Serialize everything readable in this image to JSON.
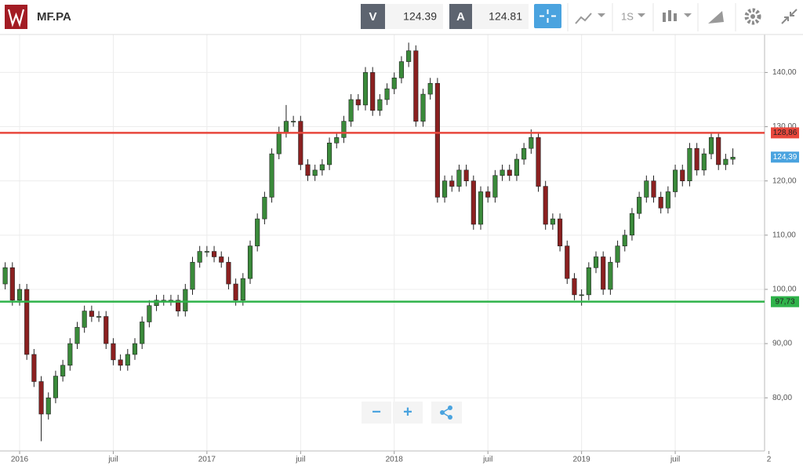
{
  "toolbar": {
    "symbol": "MF.PA",
    "bid_label": "V",
    "bid": "124.39",
    "ask_label": "A",
    "ask": "124.81",
    "period": "1S"
  },
  "zoom_controls": {
    "minus": "−",
    "plus": "+"
  },
  "chart_data": {
    "type": "candlestick",
    "up_color": "#3a8a3a",
    "down_color": "#8b2020",
    "grid": true,
    "open": [
      101,
      104,
      98,
      100,
      88,
      83,
      77,
      80,
      84,
      86,
      90,
      93,
      96,
      95,
      95,
      90,
      87,
      86,
      88,
      90,
      94,
      97,
      98,
      98,
      98,
      96,
      100,
      105,
      107,
      107,
      106,
      105,
      101,
      98,
      102,
      108,
      113,
      117,
      125,
      129,
      131,
      131,
      123,
      121,
      122,
      123,
      127,
      128,
      131,
      135,
      134,
      140,
      133,
      135,
      137,
      139,
      142,
      144,
      131,
      136,
      138,
      117,
      120,
      119,
      122,
      120,
      112,
      118,
      117,
      121,
      122,
      121,
      124,
      126,
      128,
      119,
      112,
      113,
      108,
      102,
      99,
      99,
      104,
      106,
      100,
      105,
      108,
      110,
      114,
      117,
      120,
      117,
      115,
      118,
      122,
      120,
      126,
      122,
      125,
      128,
      123,
      124
    ],
    "high": [
      105,
      105,
      101,
      101,
      89,
      84,
      81,
      85,
      87,
      91,
      94,
      97,
      97,
      96,
      96,
      91,
      88,
      89,
      91,
      95,
      98,
      99,
      99,
      99,
      99,
      101,
      106,
      108,
      108,
      108,
      107,
      106,
      102,
      103,
      109,
      114,
      118,
      126,
      130,
      134,
      132,
      132,
      124,
      123,
      124,
      128,
      129,
      132,
      136,
      136,
      141,
      141,
      136,
      138,
      140,
      143,
      145.5,
      145,
      137,
      139,
      139,
      121,
      121,
      123,
      123,
      121,
      119,
      119,
      122,
      123,
      123,
      125,
      127,
      129.5,
      129,
      120,
      114,
      114,
      109,
      103,
      100,
      105,
      107,
      107,
      106,
      109,
      111,
      115,
      118,
      121,
      121,
      118,
      119,
      123,
      123,
      127,
      127,
      126,
      129,
      129,
      125,
      126
    ],
    "low": [
      100,
      97,
      97,
      87,
      82,
      72,
      76,
      79,
      83,
      85,
      89,
      92,
      94,
      94,
      89,
      86,
      85,
      85,
      87,
      89,
      93,
      96,
      97,
      97,
      95,
      95,
      99,
      104,
      106,
      105,
      104,
      100,
      97,
      97,
      101,
      107,
      112,
      116,
      124,
      128,
      130,
      122,
      120,
      120,
      121,
      122,
      126,
      127,
      130,
      133,
      133,
      132,
      132,
      134,
      136,
      138,
      141,
      130,
      130,
      135,
      116,
      116,
      118,
      118,
      119,
      111,
      111,
      116,
      116,
      120,
      120,
      120,
      123,
      125,
      118,
      111,
      111,
      107,
      101,
      98,
      97,
      98,
      103,
      99,
      99,
      104,
      107,
      109,
      113,
      116,
      116,
      114,
      114,
      117,
      119,
      119,
      121,
      121,
      124,
      122,
      122,
      123
    ],
    "close": [
      104,
      98,
      100,
      88,
      83,
      77,
      80,
      84,
      86,
      90,
      93,
      96,
      95,
      95,
      90,
      87,
      86,
      88,
      90,
      94,
      97,
      98,
      98,
      98,
      96,
      100,
      105,
      107,
      107,
      106,
      105,
      101,
      98,
      102,
      108,
      113,
      117,
      125,
      129,
      131,
      131,
      123,
      121,
      122,
      123,
      127,
      128,
      131,
      135,
      134,
      140,
      133,
      135,
      137,
      139,
      142,
      144,
      131,
      136,
      138,
      117,
      120,
      119,
      122,
      120,
      112,
      118,
      117,
      121,
      122,
      121,
      124,
      126,
      128,
      119,
      112,
      113,
      108,
      102,
      99,
      99,
      104,
      106,
      100,
      105,
      108,
      110,
      114,
      117,
      120,
      117,
      115,
      118,
      122,
      120,
      126,
      122,
      125,
      128,
      123,
      124,
      124.39
    ],
    "xlim": [
      -0.72,
      105.4
    ],
    "xticks": [
      {
        "value": 2,
        "label": "2016"
      },
      {
        "value": 15,
        "label": "juil"
      },
      {
        "value": 28,
        "label": "2017"
      },
      {
        "value": 41,
        "label": "juil"
      },
      {
        "value": 54,
        "label": "2018"
      },
      {
        "value": 67,
        "label": "juil"
      },
      {
        "value": 80,
        "label": "2019"
      },
      {
        "value": 93,
        "label": "juil"
      },
      {
        "value": 106,
        "label": "2"
      }
    ],
    "ylim": [
      70.2,
      147
    ],
    "yticks": [
      {
        "value": 80,
        "label": "80,00"
      },
      {
        "value": 90,
        "label": "90,00"
      },
      {
        "value": 100,
        "label": "100,00"
      },
      {
        "value": 110,
        "label": "110,00"
      },
      {
        "value": 120,
        "label": "120,00"
      },
      {
        "value": 130,
        "label": "130,00"
      },
      {
        "value": 140,
        "label": "140,00"
      }
    ],
    "hlines": [
      {
        "value": 128.86,
        "label": "128,86",
        "color": "#e8473c"
      },
      {
        "value": 97.73,
        "label": "97,73",
        "color": "#2fb34a"
      }
    ],
    "last_price": {
      "value": 124.39,
      "label": "124,39",
      "color": "#4aa3df"
    }
  }
}
